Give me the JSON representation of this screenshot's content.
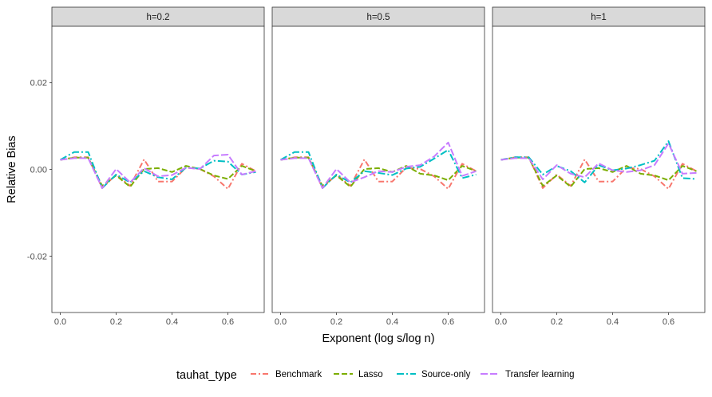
{
  "chart_data": {
    "type": "line",
    "xlabel": "Exponent (log s/log n)",
    "ylabel": "Relative Bias",
    "xlim": [
      -0.03,
      0.73
    ],
    "ylim": [
      -0.033,
      0.033
    ],
    "x_ticks": [
      0.0,
      0.2,
      0.4,
      0.6
    ],
    "x_tick_labels": [
      "0.0",
      "0.2",
      "0.4",
      "0.6"
    ],
    "y_ticks": [
      -0.02,
      0.0,
      0.02
    ],
    "y_tick_labels": [
      "-0.02",
      "0.00",
      "0.02"
    ],
    "grid": false,
    "legend": {
      "title": "tauhat_type",
      "position": "bottom",
      "entries": [
        {
          "label": "Benchmark",
          "color": "#F8766D",
          "dash": "7,3,2,3"
        },
        {
          "label": "Lasso",
          "color": "#7CAE00",
          "dash": "7,3"
        },
        {
          "label": "Source-only",
          "color": "#00BFC4",
          "dash": "9,3,2,3"
        },
        {
          "label": "Transfer learning",
          "color": "#C77CFF",
          "dash": "9,3"
        }
      ]
    },
    "x": [
      0.0,
      0.05,
      0.1,
      0.15,
      0.2,
      0.25,
      0.3,
      0.35,
      0.4,
      0.45,
      0.5,
      0.55,
      0.6,
      0.65,
      0.7
    ],
    "panels": [
      {
        "strip": "h=0.2",
        "series": [
          {
            "name": "Benchmark",
            "values": [
              0.0022,
              0.0028,
              0.0028,
              -0.0043,
              -0.0012,
              -0.0038,
              0.0023,
              -0.0028,
              -0.0028,
              0.0004,
              0.0001,
              -0.0016,
              -0.0045,
              0.0013,
              -0.0004
            ]
          },
          {
            "name": "Lasso",
            "values": [
              0.0022,
              0.0027,
              0.0027,
              -0.0038,
              -0.0014,
              -0.004,
              0.0001,
              0.0003,
              -0.0006,
              0.0008,
              0.0001,
              -0.0014,
              -0.0022,
              0.0008,
              -0.0004
            ]
          },
          {
            "name": "Source-only",
            "values": [
              0.0022,
              0.004,
              0.004,
              -0.0043,
              -0.0012,
              -0.003,
              -0.0004,
              -0.0018,
              -0.0023,
              0.0004,
              0.0002,
              0.002,
              0.0018,
              -0.0012,
              -0.0006
            ]
          },
          {
            "name": "Transfer learning",
            "values": [
              0.0022,
              0.0026,
              0.0026,
              -0.0043,
              0.0001,
              -0.003,
              0.0003,
              -0.0016,
              -0.0013,
              0.0004,
              0.0001,
              0.0032,
              0.0034,
              -0.0012,
              -0.0004
            ]
          }
        ]
      },
      {
        "strip": "h=0.5",
        "series": [
          {
            "name": "Benchmark",
            "values": [
              0.0022,
              0.0028,
              0.0028,
              -0.0043,
              -0.0012,
              -0.0038,
              0.0023,
              -0.0028,
              -0.0028,
              0.0004,
              0.0001,
              -0.0016,
              -0.0045,
              0.0013,
              -0.0004
            ]
          },
          {
            "name": "Lasso",
            "values": [
              0.0022,
              0.0027,
              0.0027,
              -0.0038,
              -0.0014,
              -0.004,
              0.0001,
              0.0003,
              -0.0006,
              0.0008,
              -0.001,
              -0.0014,
              -0.0025,
              0.0008,
              -0.0004
            ]
          },
          {
            "name": "Source-only",
            "values": [
              0.0022,
              0.004,
              0.004,
              -0.0043,
              -0.0012,
              -0.003,
              -0.0004,
              -0.0008,
              -0.0013,
              0.0002,
              0.0006,
              0.0025,
              0.0045,
              -0.002,
              -0.0012
            ]
          },
          {
            "name": "Transfer learning",
            "values": [
              0.0022,
              0.0026,
              0.0026,
              -0.0043,
              0.0001,
              -0.003,
              -0.0018,
              -0.0004,
              -0.0006,
              0.0006,
              0.001,
              0.003,
              0.0062,
              -0.0015,
              -0.0004
            ]
          }
        ]
      },
      {
        "strip": "h=1",
        "series": [
          {
            "name": "Benchmark",
            "values": [
              0.0022,
              0.0028,
              0.0028,
              -0.0043,
              -0.0012,
              -0.0038,
              0.0023,
              -0.0028,
              -0.0028,
              0.0004,
              0.0001,
              -0.0016,
              -0.0045,
              0.0013,
              -0.0004
            ]
          },
          {
            "name": "Lasso",
            "values": [
              0.0022,
              0.0027,
              0.0027,
              -0.0038,
              -0.0014,
              -0.004,
              0.0001,
              0.0003,
              -0.0006,
              0.0008,
              -0.001,
              -0.0014,
              -0.0025,
              0.0008,
              -0.0004
            ]
          },
          {
            "name": "Source-only",
            "values": [
              0.0022,
              0.0028,
              0.0028,
              -0.0012,
              0.0008,
              -0.0004,
              -0.003,
              0.001,
              -0.0002,
              0.0002,
              0.001,
              0.002,
              0.0065,
              -0.002,
              -0.0022
            ]
          },
          {
            "name": "Transfer learning",
            "values": [
              0.0022,
              0.0026,
              0.0026,
              -0.0023,
              0.001,
              -0.001,
              -0.0018,
              0.0014,
              -0.0002,
              -0.0006,
              -0.0002,
              0.001,
              0.006,
              -0.001,
              -0.0008
            ]
          }
        ]
      }
    ]
  }
}
